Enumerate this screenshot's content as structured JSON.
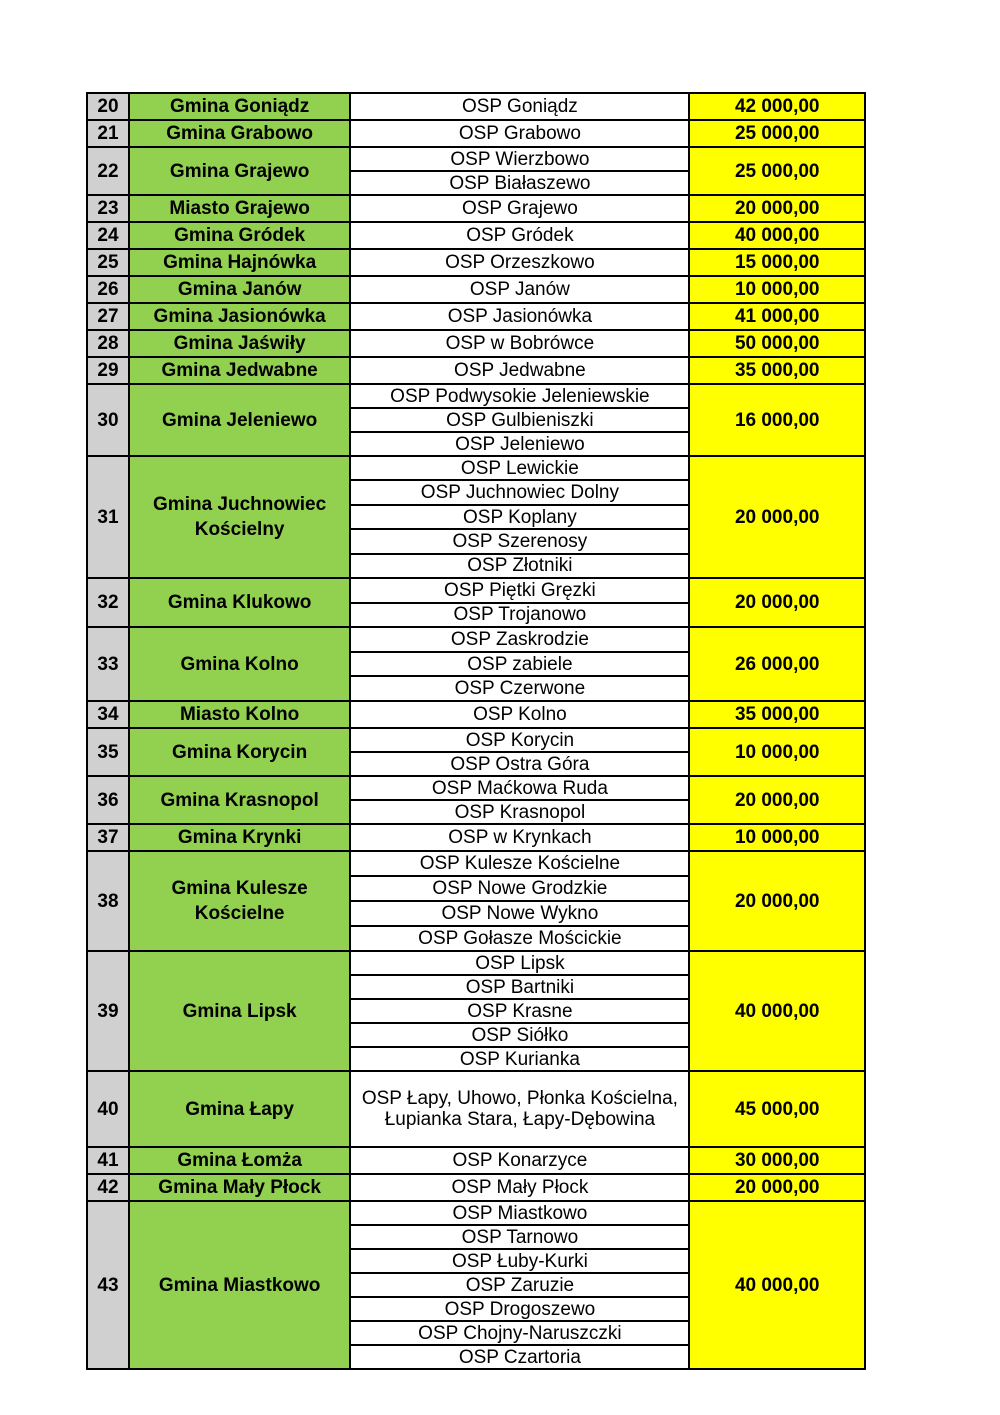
{
  "rows": [
    {
      "lp": "20",
      "gmina": "Gmina Goniądz",
      "osp": [
        "OSP Goniądz"
      ],
      "kwota": "42 000,00"
    },
    {
      "lp": "21",
      "gmina": "Gmina Grabowo",
      "osp": [
        "OSP Grabowo"
      ],
      "kwota": "25 000,00"
    },
    {
      "lp": "22",
      "gmina": "Gmina Grajewo",
      "osp": [
        "OSP Wierzbowo",
        "OSP Białaszewo"
      ],
      "kwota": "25 000,00"
    },
    {
      "lp": "23",
      "gmina": "Miasto Grajewo",
      "osp": [
        "OSP Grajewo"
      ],
      "kwota": "20 000,00"
    },
    {
      "lp": "24",
      "gmina": "Gmina Gródek",
      "osp": [
        "OSP Gródek"
      ],
      "kwota": "40 000,00"
    },
    {
      "lp": "25",
      "gmina": "Gmina Hajnówka",
      "osp": [
        "OSP Orzeszkowo"
      ],
      "kwota": "15 000,00"
    },
    {
      "lp": "26",
      "gmina": "Gmina Janów",
      "osp": [
        "OSP Janów"
      ],
      "kwota": "10 000,00"
    },
    {
      "lp": "27",
      "gmina": "Gmina Jasionówka",
      "osp": [
        "OSP Jasionówka"
      ],
      "kwota": "41 000,00"
    },
    {
      "lp": "28",
      "gmina": "Gmina Jaświły",
      "osp": [
        "OSP w Bobrówce"
      ],
      "kwota": "50 000,00"
    },
    {
      "lp": "29",
      "gmina": "Gmina Jedwabne",
      "osp": [
        "OSP Jedwabne"
      ],
      "kwota": "35 000,00"
    },
    {
      "lp": "30",
      "gmina": "Gmina Jeleniewo",
      "osp": [
        "OSP Podwysokie Jeleniewskie",
        "OSP Gulbieniszki",
        "OSP Jeleniewo"
      ],
      "kwota": "16 000,00"
    },
    {
      "lp": "31",
      "gmina": "Gmina Juchnowiec Kościelny",
      "osp": [
        "OSP Lewickie",
        "OSP Juchnowiec Dolny",
        "OSP Koplany",
        "OSP Szerenosy",
        "OSP Złotniki"
      ],
      "kwota": "20 000,00"
    },
    {
      "lp": "32",
      "gmina": "Gmina Klukowo",
      "osp": [
        "OSP Piętki Gręzki",
        "OSP Trojanowo"
      ],
      "kwota": "20 000,00"
    },
    {
      "lp": "33",
      "gmina": "Gmina Kolno",
      "osp": [
        "OSP Zaskrodzie",
        "OSP zabiele",
        "OSP Czerwone"
      ],
      "kwota": "26 000,00"
    },
    {
      "lp": "34",
      "gmina": "Miasto Kolno",
      "osp": [
        "OSP Kolno"
      ],
      "kwota": "35 000,00"
    },
    {
      "lp": "35",
      "gmina": "Gmina Korycin",
      "osp": [
        "OSP Korycin",
        "OSP Ostra Góra"
      ],
      "kwota": "10 000,00"
    },
    {
      "lp": "36",
      "gmina": "Gmina Krasnopol",
      "osp": [
        "OSP Maćkowa Ruda",
        "OSP Krasnopol"
      ],
      "kwota": "20 000,00"
    },
    {
      "lp": "37",
      "gmina": "Gmina Krynki",
      "osp": [
        "OSP w Krynkach"
      ],
      "kwota": "10 000,00"
    },
    {
      "lp": "38",
      "gmina": "Gmina Kulesze Kościelne",
      "osp": [
        "OSP Kulesze Kościelne",
        "OSP Nowe Grodzkie",
        "OSP Nowe Wykno",
        "OSP Gołasze Mościckie"
      ],
      "kwota": "20 000,00"
    },
    {
      "lp": "39",
      "gmina": "Gmina Lipsk",
      "osp": [
        "OSP Lipsk",
        "OSP Bartniki",
        "OSP Krasne",
        "OSP Siółko",
        "OSP Kurianka"
      ],
      "kwota": "40 000,00"
    },
    {
      "lp": "40",
      "gmina": "Gmina Łapy",
      "osp": [
        "OSP Łapy, Uhowo, Płonka Kościelna, Łupianka Stara, Łapy-Dębowina"
      ],
      "kwota": "45 000,00"
    },
    {
      "lp": "41",
      "gmina": "Gmina Łomża",
      "osp": [
        "OSP Konarzyce"
      ],
      "kwota": "30 000,00"
    },
    {
      "lp": "42",
      "gmina": "Gmina Mały Płock",
      "osp": [
        "OSP Mały Płock"
      ],
      "kwota": "20 000,00"
    },
    {
      "lp": "43",
      "gmina": "Gmina Miastkowo",
      "osp": [
        "OSP Miastkowo",
        "OSP Tarnowo",
        "OSP Łuby-Kurki",
        "OSP Zaruzie",
        "OSP Drogoszewo",
        "OSP Chojny-Naruszczki",
        "OSP Czartoria"
      ],
      "kwota": "40 000,00"
    }
  ]
}
